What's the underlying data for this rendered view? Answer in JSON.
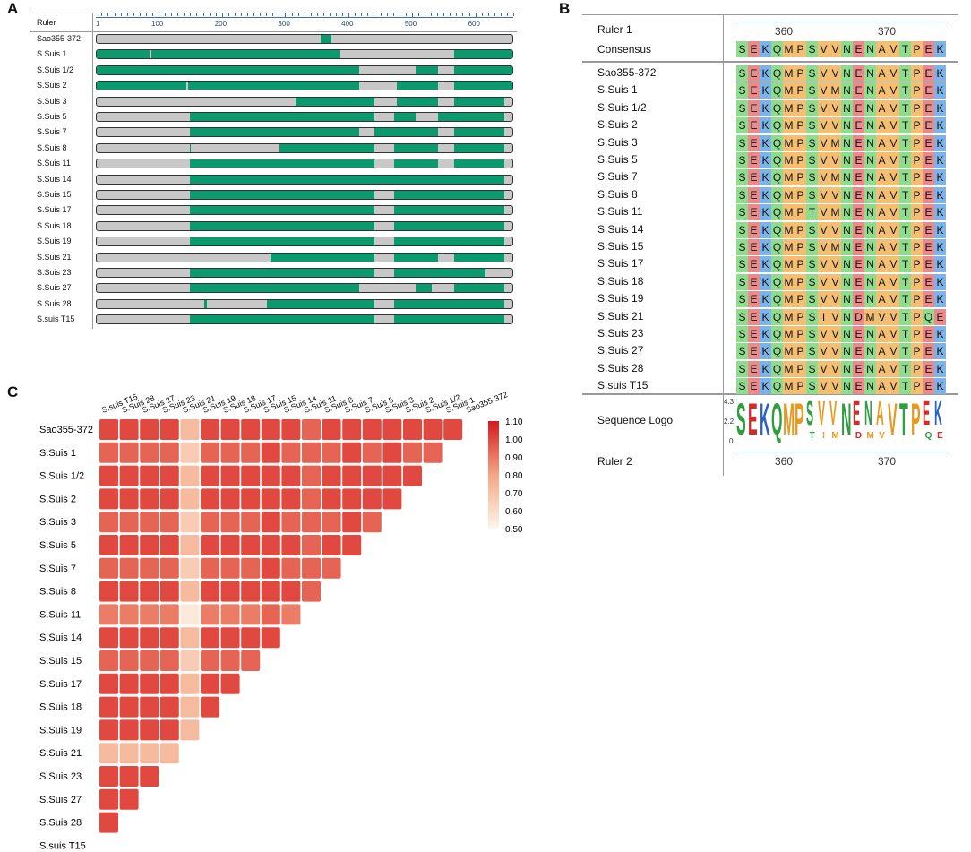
{
  "panel_labels": {
    "a": "A",
    "b": "B",
    "c": "C"
  },
  "panelA": {
    "ruler_label": "Ruler",
    "axis_min": 1,
    "axis_max": 660,
    "ticks": [
      1,
      100,
      200,
      300,
      400,
      500,
      600
    ],
    "colors": {
      "gap": "#c8c8c8",
      "seq": "#0a9a6e"
    },
    "rows": [
      {
        "name": "Sao355-372",
        "segments": [
          [
            355,
            372
          ]
        ]
      },
      {
        "name": "S.Suis 1",
        "segments": [
          [
            1,
            85
          ],
          [
            87,
            385
          ],
          [
            565,
            660
          ]
        ]
      },
      {
        "name": "S.Suis 1/2",
        "segments": [
          [
            1,
            415
          ],
          [
            505,
            540
          ],
          [
            565,
            660
          ]
        ]
      },
      {
        "name": "S.Suis 2",
        "segments": [
          [
            1,
            143
          ],
          [
            145,
            415
          ],
          [
            475,
            540
          ],
          [
            565,
            660
          ]
        ]
      },
      {
        "name": "S.Suis 3",
        "segments": [
          [
            315,
            440
          ],
          [
            475,
            540
          ],
          [
            565,
            645
          ]
        ]
      },
      {
        "name": "S.Suis 5",
        "segments": [
          [
            148,
            440
          ],
          [
            470,
            505
          ],
          [
            540,
            645
          ]
        ]
      },
      {
        "name": "S.Suis 7",
        "segments": [
          [
            148,
            415
          ],
          [
            440,
            540
          ],
          [
            565,
            645
          ]
        ]
      },
      {
        "name": "S.Suis 8",
        "segments": [
          [
            148,
            150
          ],
          [
            290,
            440
          ],
          [
            470,
            540
          ],
          [
            565,
            645
          ]
        ]
      },
      {
        "name": "S.Suis 11",
        "segments": [
          [
            148,
            440
          ],
          [
            470,
            540
          ],
          [
            565,
            645
          ]
        ]
      },
      {
        "name": "S.Suis 14",
        "segments": [
          [
            148,
            645
          ]
        ]
      },
      {
        "name": "S.Suis 15",
        "segments": [
          [
            148,
            440
          ],
          [
            470,
            645
          ]
        ]
      },
      {
        "name": "S.Suis 17",
        "segments": [
          [
            148,
            440
          ],
          [
            470,
            645
          ]
        ]
      },
      {
        "name": "S.Suis 18",
        "segments": [
          [
            148,
            440
          ],
          [
            470,
            645
          ]
        ]
      },
      {
        "name": "S.Suis 19",
        "segments": [
          [
            148,
            440
          ],
          [
            470,
            645
          ]
        ]
      },
      {
        "name": "S.Suis 21",
        "segments": [
          [
            275,
            440
          ],
          [
            470,
            540
          ],
          [
            565,
            645
          ]
        ]
      },
      {
        "name": "S.Suis 23",
        "segments": [
          [
            148,
            440
          ],
          [
            470,
            615
          ]
        ]
      },
      {
        "name": "S.Suis 27",
        "segments": [
          [
            148,
            415
          ],
          [
            505,
            530
          ],
          [
            565,
            645
          ]
        ]
      },
      {
        "name": "S.Suis 28",
        "segments": [
          [
            170,
            175
          ],
          [
            270,
            440
          ],
          [
            470,
            645
          ]
        ]
      },
      {
        "name": "S.suis T15",
        "segments": [
          [
            148,
            440
          ],
          [
            470,
            645
          ]
        ]
      }
    ]
  },
  "panelB": {
    "ruler1_label": "Ruler 1",
    "consensus_label": "Consensus",
    "ruler2_label": "Ruler 2",
    "logo_label": "Sequence Logo",
    "logo_axis": [
      "4.3",
      "2.2",
      "0"
    ],
    "ruler_ticks": [
      "360",
      "370"
    ],
    "consensus": "SEKQMPSVVNENAVTPEK",
    "colors": {
      "hydrophobic": "#f4bf73",
      "polar": "#8fdc8f",
      "positive": "#7cb3e8",
      "negative": "#ec8a8a"
    },
    "rows": [
      {
        "name": "Sao355-372",
        "seq": "SEKQMPSVVNENAVTPEK"
      },
      {
        "name": "S.Suis 1",
        "seq": "SEKQMPSVMNENAVTPEK"
      },
      {
        "name": "S.Suis 1/2",
        "seq": "SEKQMPSVVNENAVTPEK"
      },
      {
        "name": "S.Suis 2",
        "seq": "SEKQMPSVVNENAVTPEK"
      },
      {
        "name": "S.Suis 3",
        "seq": "SEKQMPSVMNENAVTPEK"
      },
      {
        "name": "S.Suis 5",
        "seq": "SEKQMPSVVNENAVTPEK"
      },
      {
        "name": "S.Suis 7",
        "seq": "SEKQMPSVMNENAVTPEK"
      },
      {
        "name": "S.Suis 8",
        "seq": "SEKQMPSVVNENAVTPEK"
      },
      {
        "name": "S.Suis 11",
        "seq": "SEKQMPTVMNENAVTPEK"
      },
      {
        "name": "S.Suis 14",
        "seq": "SEKQMPSVVNENAVTPEK"
      },
      {
        "name": "S.Suis 15",
        "seq": "SEKQMPSVMNENAVTPEK"
      },
      {
        "name": "S.Suis 17",
        "seq": "SEKQMPSVVNENAVTPEK"
      },
      {
        "name": "S.Suis 18",
        "seq": "SEKQMPSVVNENAVTPEK"
      },
      {
        "name": "S.Suis 19",
        "seq": "SEKQMPSVVNENAVTPEK"
      },
      {
        "name": "S.Suis 21",
        "seq": "SEKQMPSIVNDMVVTPQE"
      },
      {
        "name": "S.Suis 23",
        "seq": "SEKQMPSVVNENAVTPEK"
      },
      {
        "name": "S.Suis 27",
        "seq": "SEKQMPSVVNENAVTPEK"
      },
      {
        "name": "S.Suis 28",
        "seq": "SEKQMPSVVNENAVTPEK"
      },
      {
        "name": "S.suis T15",
        "seq": "SEKQMPSVVNENAVTPEK"
      }
    ],
    "logo_letters": [
      "S",
      "E",
      "K",
      "Q",
      "M",
      "P",
      "S",
      "V",
      "V",
      "N",
      "E",
      "N",
      "A",
      "V",
      "T",
      "P",
      "E",
      "K"
    ],
    "logo_minor": [
      "",
      "",
      "",
      "",
      "",
      "",
      "T",
      "I",
      "M",
      "",
      "D",
      "M",
      "V",
      "",
      "",
      "",
      "Q",
      "E"
    ]
  },
  "chart_data": {
    "type": "heatmap",
    "title": "",
    "row_labels": [
      "Sao355-372",
      "S.Suis 1",
      "S.Suis 1/2",
      "S.Suis 2",
      "S.Suis 3",
      "S.Suis 5",
      "S.Suis 7",
      "S.Suis 8",
      "S.Suis 11",
      "S.Suis 14",
      "S.Suis 15",
      "S.Suis 17",
      "S.Suis 18",
      "S.Suis 19",
      "S.Suis 21",
      "S.Suis 23",
      "S.Suis 27",
      "S.Suis 28",
      "S.suis T15"
    ],
    "col_labels": [
      "S.suis T15",
      "S.Suis 28",
      "S.Suis 27",
      "S.Suis 23",
      "S.Suis 21",
      "S.Suis 19",
      "S.Suis 18",
      "S.Suis 17",
      "S.Suis 15",
      "S.Suis 14",
      "S.Suis 11",
      "S.Suis 8",
      "S.Suis 7",
      "S.Suis 5",
      "S.Suis 3",
      "S.Suis 2",
      "S.Suis 1/2",
      "S.Suis 1",
      "Sao355-372"
    ],
    "colorbar": {
      "min": 0.5,
      "max": 1.1,
      "ticks": [
        "1.10",
        "1.00",
        "0.90",
        "0.80",
        "0.70",
        "0.60",
        "0.50"
      ],
      "low_color": "#fdf6ea",
      "high_color": "#d7191c"
    },
    "values": [
      [
        1.0,
        1.0,
        1.0,
        1.0,
        0.72,
        1.0,
        1.0,
        1.0,
        1.0,
        1.0,
        0.94,
        1.0,
        1.0,
        1.0,
        1.0,
        1.0,
        1.0,
        1.0
      ],
      [
        0.94,
        0.94,
        0.94,
        0.94,
        0.66,
        0.94,
        0.94,
        0.94,
        1.0,
        0.94,
        0.94,
        0.94,
        1.0,
        0.94,
        1.0,
        0.94,
        0.94
      ],
      [
        1.0,
        1.0,
        1.0,
        1.0,
        0.72,
        1.0,
        1.0,
        1.0,
        1.0,
        1.0,
        0.94,
        1.0,
        1.0,
        1.0,
        1.0,
        1.0
      ],
      [
        1.0,
        1.0,
        1.0,
        1.0,
        0.72,
        1.0,
        1.0,
        1.0,
        1.0,
        1.0,
        0.94,
        1.0,
        1.0,
        1.0,
        1.0
      ],
      [
        0.94,
        0.94,
        0.94,
        0.94,
        0.66,
        0.94,
        0.94,
        0.94,
        1.0,
        0.94,
        0.94,
        0.94,
        1.0,
        0.94
      ],
      [
        1.0,
        1.0,
        1.0,
        1.0,
        0.72,
        1.0,
        1.0,
        1.0,
        1.0,
        1.0,
        0.94,
        1.0,
        1.0
      ],
      [
        0.94,
        0.94,
        0.94,
        0.94,
        0.66,
        0.94,
        0.94,
        0.94,
        1.0,
        0.94,
        0.94,
        0.94
      ],
      [
        1.0,
        1.0,
        1.0,
        1.0,
        0.72,
        1.0,
        1.0,
        1.0,
        1.0,
        1.0,
        0.94
      ],
      [
        0.89,
        0.89,
        0.89,
        0.89,
        0.55,
        0.89,
        0.89,
        0.89,
        0.94,
        0.89
      ],
      [
        1.0,
        1.0,
        1.0,
        1.0,
        0.72,
        1.0,
        1.0,
        1.0,
        1.0
      ],
      [
        0.94,
        0.94,
        0.94,
        0.94,
        0.66,
        0.94,
        0.94,
        0.94
      ],
      [
        1.0,
        1.0,
        1.0,
        1.0,
        0.72,
        1.0,
        1.0
      ],
      [
        1.0,
        1.0,
        1.0,
        1.0,
        0.72,
        1.0
      ],
      [
        1.0,
        1.0,
        1.0,
        1.0,
        0.72
      ],
      [
        0.72,
        0.72,
        0.72,
        0.72
      ],
      [
        1.0,
        1.0,
        1.0
      ],
      [
        1.0,
        1.0
      ],
      [
        1.0
      ],
      []
    ]
  }
}
